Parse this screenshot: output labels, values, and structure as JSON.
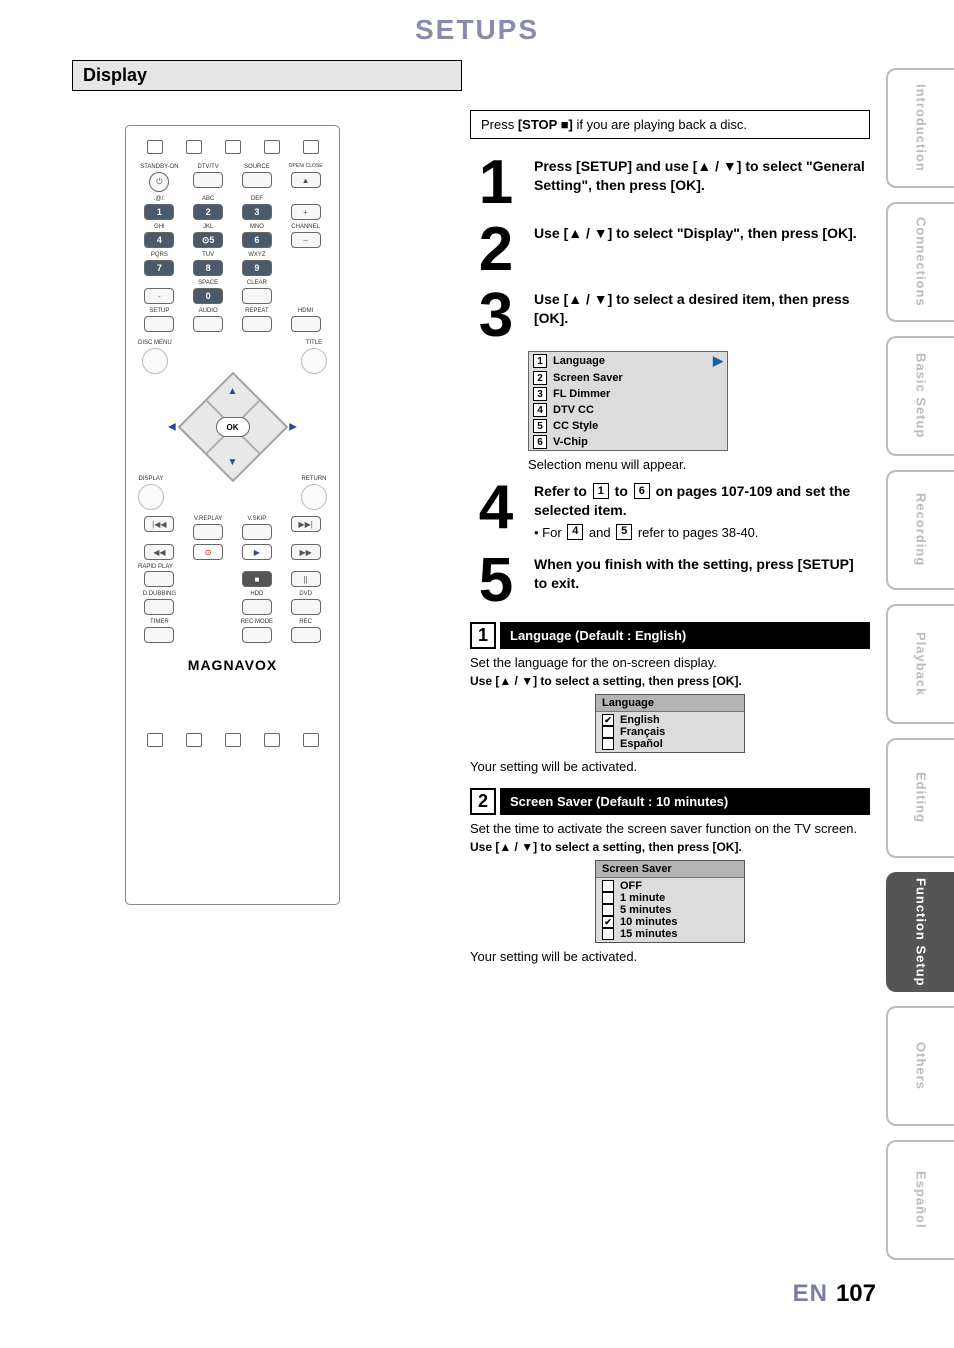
{
  "page": {
    "title": "SETUPS",
    "footer_lang": "EN",
    "footer_page": "107"
  },
  "section": {
    "header": "Display"
  },
  "side_tabs": [
    {
      "label": "Introduction",
      "active": false
    },
    {
      "label": "Connections",
      "active": false
    },
    {
      "label": "Basic Setup",
      "active": false
    },
    {
      "label": "Recording",
      "active": false
    },
    {
      "label": "Playback",
      "active": false
    },
    {
      "label": "Editing",
      "active": false
    },
    {
      "label": "Function Setup",
      "active": true
    },
    {
      "label": "Others",
      "active": false
    },
    {
      "label": "Español",
      "active": false
    }
  ],
  "remote": {
    "row1_labels": [
      "STANDBY-ON",
      "DTV/TV",
      "SOURCE",
      "OPEN/\nCLOSE"
    ],
    "row2_labels": [
      ".@/:",
      "ABC",
      "DEF",
      ""
    ],
    "nums1": [
      "1",
      "2",
      "3"
    ],
    "row3_labels": [
      "GHI",
      "JKL",
      "MNO",
      "CHANNEL"
    ],
    "nums2": [
      "4",
      "5",
      "6"
    ],
    "row4_labels": [
      "PQRS",
      "TUV",
      "WXYZ"
    ],
    "nums3": [
      "7",
      "8",
      "9"
    ],
    "row5_labels": [
      "",
      "SPACE",
      "CLEAR"
    ],
    "zero": "0",
    "row6_labels": [
      "SETUP",
      "AUDIO",
      "REPEAT",
      "HDMI"
    ],
    "disc_menu": "DISC MENU",
    "title": "TITLE",
    "ok": "OK",
    "display": "DISPLAY",
    "return": "RETURN",
    "vreplay": "V.REPLAY",
    "vskip": "V.SKIP",
    "rapid": "RAPID PLAY",
    "ddub": "D.DUBBING",
    "hdd": "HDD",
    "dvd": "DVD",
    "timer": "TIMER",
    "recmode": "REC MODE",
    "rec": "REC",
    "brand": "MAGNAVOX"
  },
  "note": {
    "text_pre": "Press ",
    "text_bold": "[STOP ■]",
    "text_post": " if you are playing back a disc."
  },
  "steps": {
    "s1": "Press [SETUP] and use [▲ / ▼] to select \"General Setting\", then press [OK].",
    "s2": "Use [▲ / ▼] to select \"Display\", then press [OK].",
    "s3": "Use [▲ / ▼] to select a desired item, then press [OK].",
    "s3_menu": [
      "Language",
      "Screen Saver",
      "FL Dimmer",
      "DTV CC",
      "CC Style",
      "V-Chip"
    ],
    "s3_note": "Selection menu will appear.",
    "s4_l1a": "Refer to ",
    "s4_l1b": " to ",
    "s4_l1c": " on pages 107-109 and set the selected item.",
    "s4_bullet_a": "For ",
    "s4_bullet_b": " and ",
    "s4_bullet_c": " refer to pages 38-40.",
    "s5": "When you finish with the setting, press [SETUP] to exit."
  },
  "detail1": {
    "idx": "1",
    "title": "Language (Default : English)",
    "desc": "Set the language for the on-screen display.",
    "instr": "Use [▲ / ▼] to select a setting, then press [OK].",
    "box_title": "Language",
    "options": [
      {
        "label": "English",
        "checked": true
      },
      {
        "label": "Français",
        "checked": false
      },
      {
        "label": "Español",
        "checked": false
      }
    ],
    "footer": "Your setting will be activated."
  },
  "detail2": {
    "idx": "2",
    "title": "Screen Saver (Default : 10 minutes)",
    "desc": "Set the time to activate the screen saver function on the TV screen.",
    "instr": "Use [▲ / ▼] to select a setting, then press [OK].",
    "box_title": "Screen Saver",
    "options": [
      {
        "label": "OFF",
        "checked": false
      },
      {
        "label": "1 minute",
        "checked": false
      },
      {
        "label": "5 minutes",
        "checked": false
      },
      {
        "label": "10  minutes",
        "checked": true
      },
      {
        "label": "15  minutes",
        "checked": false
      }
    ],
    "footer": "Your setting will be activated."
  },
  "colors": {
    "title": "#8a8aad",
    "section_bg": "#e6e6e6",
    "tab_inactive": "#bbbbbb",
    "tab_active_bg": "#555555",
    "menu_bg": "#dcdcdc",
    "num_btn": "#4a5a6a",
    "footer_en": "#7b7baa"
  }
}
